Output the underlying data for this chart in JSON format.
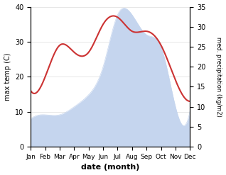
{
  "months": [
    "Jan",
    "Feb",
    "Mar",
    "Apr",
    "May",
    "Jun",
    "Jul",
    "Aug",
    "Sep",
    "Oct",
    "Nov",
    "Dec"
  ],
  "temp": [
    16,
    20,
    29,
    27,
    27,
    35,
    37,
    33,
    33,
    29,
    19,
    13
  ],
  "precip": [
    7,
    8,
    8,
    10,
    13,
    20,
    33,
    33,
    28,
    25,
    10,
    9
  ],
  "temp_color": "#cc3333",
  "precip_fill_color": "#c5d5ee",
  "ylim_left": [
    0,
    40
  ],
  "ylim_right": [
    0,
    35
  ],
  "xlabel": "date (month)",
  "ylabel_left": "max temp (C)",
  "ylabel_right": "med. precipitation (kg/m2)",
  "left_ticks": [
    0,
    10,
    20,
    30,
    40
  ],
  "right_ticks": [
    0,
    5,
    10,
    15,
    20,
    25,
    30,
    35
  ]
}
